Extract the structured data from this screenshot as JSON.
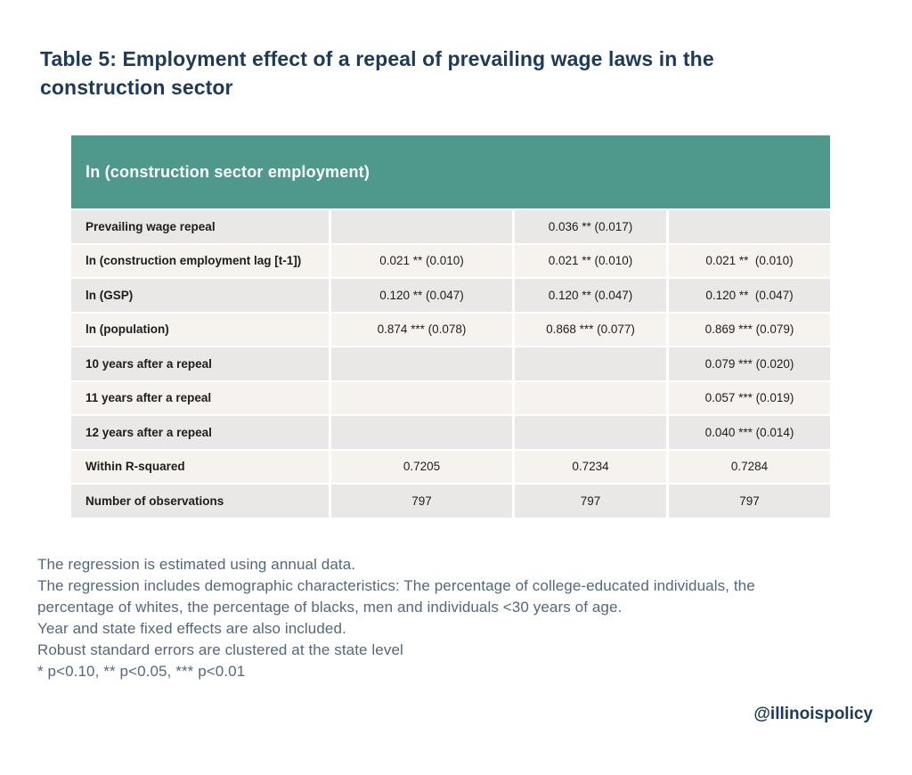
{
  "page": {
    "title_lines": [
      "Table 5: Employment effect of a repeal of prevailing wage laws in the",
      "construction sector"
    ]
  },
  "table": {
    "header": "ln (construction sector employment)",
    "rows": [
      {
        "label": "Prevailing wage repeal",
        "values": [
          "",
          "0.036 ** (0.017)",
          ""
        ]
      },
      {
        "label": "ln (construction employment lag [t-1])",
        "values": [
          "0.021 ** (0.010)",
          "0.021 ** (0.010)",
          "0.021 **  (0.010)"
        ]
      },
      {
        "label": "ln (GSP)",
        "values": [
          "0.120 ** (0.047)",
          "0.120 ** (0.047)",
          "0.120 **  (0.047)"
        ]
      },
      {
        "label": "ln (population)",
        "values": [
          "0.874 *** (0.078)",
          "0.868 *** (0.077)",
          "0.869 *** (0.079)"
        ]
      },
      {
        "label": "10 years after a repeal",
        "values": [
          "",
          "",
          "0.079 *** (0.020)"
        ]
      },
      {
        "label": "11 years after a repeal",
        "values": [
          "",
          "",
          "0.057 *** (0.019)"
        ]
      },
      {
        "label": "12 years after a repeal",
        "values": [
          "",
          "",
          "0.040 *** (0.014)"
        ]
      },
      {
        "label": "Within R-squared",
        "values": [
          "0.7205",
          "0.7234",
          "0.7284"
        ]
      },
      {
        "label": "Number of observations",
        "values": [
          "797",
          "797",
          "797"
        ]
      }
    ]
  },
  "notes": {
    "lines": [
      "The regression is estimated using annual data.",
      "The regression includes demographic characteristics: The percentage of college-educated individuals, the",
      "percentage of whites, the percentage of blacks, men and individuals <30 years of age.",
      "Year and state fixed effects are also included.",
      "Robust standard errors are clustered at the state level",
      "* p<0.10, ** p<0.05, *** p<0.01"
    ]
  },
  "footer": {
    "handle": "@illinoispolicy"
  },
  "colors": {
    "header_teal": "#4f998c",
    "row_gray": "#e9e8e7",
    "row_cream": "#f6f3ef",
    "title_navy": "#1b3a5c",
    "note_blue": "#53687e"
  }
}
